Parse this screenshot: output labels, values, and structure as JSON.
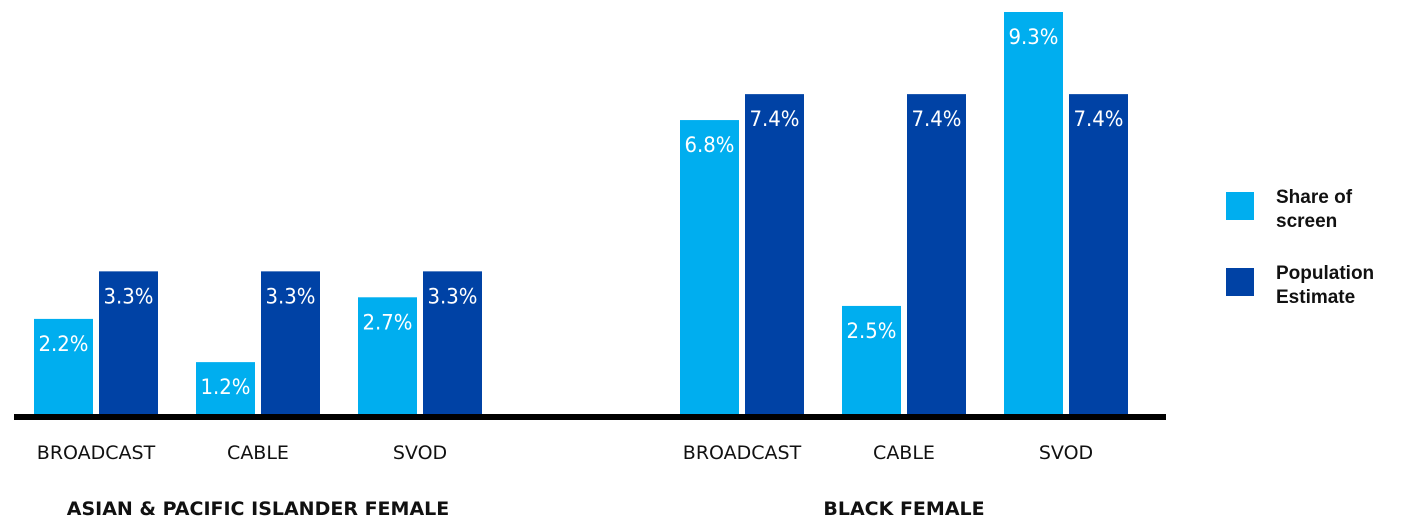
{
  "chart_data": {
    "type": "bar",
    "groups": [
      {
        "label": "ASIAN & PACIFIC ISLANDER FEMALE",
        "categories": [
          "BROADCAST",
          "CABLE",
          "SVOD"
        ],
        "series": [
          {
            "name": "Share of screen",
            "values": [
              2.2,
              1.2,
              2.7
            ],
            "labels": [
              "2.2%",
              "1.2%",
              "2.7%"
            ]
          },
          {
            "name": "Population Estimate",
            "values": [
              3.3,
              3.3,
              3.3
            ],
            "labels": [
              "3.3%",
              "3.3%",
              "3.3%"
            ]
          }
        ]
      },
      {
        "label": "BLACK FEMALE",
        "categories": [
          "BROADCAST",
          "CABLE",
          "SVOD"
        ],
        "series": [
          {
            "name": "Share of screen",
            "values": [
              6.8,
              2.5,
              9.3
            ],
            "labels": [
              "6.8%",
              "2.5%",
              "9.3%"
            ]
          },
          {
            "name": "Population Estimate",
            "values": [
              7.4,
              7.4,
              7.4
            ],
            "labels": [
              "7.4%",
              "7.4%",
              "7.4%"
            ]
          }
        ]
      }
    ],
    "ylim": [
      0,
      9.3
    ],
    "grid": false,
    "legend_position": "right",
    "colors": {
      "Share of screen": "#00aeef",
      "Population Estimate": "#0042a5",
      "baseline": "#000000"
    }
  },
  "legend": {
    "items": [
      {
        "label": "Share of screen",
        "color": "#00aeef"
      },
      {
        "label": "Population Estimate",
        "color": "#0042a5"
      }
    ]
  }
}
